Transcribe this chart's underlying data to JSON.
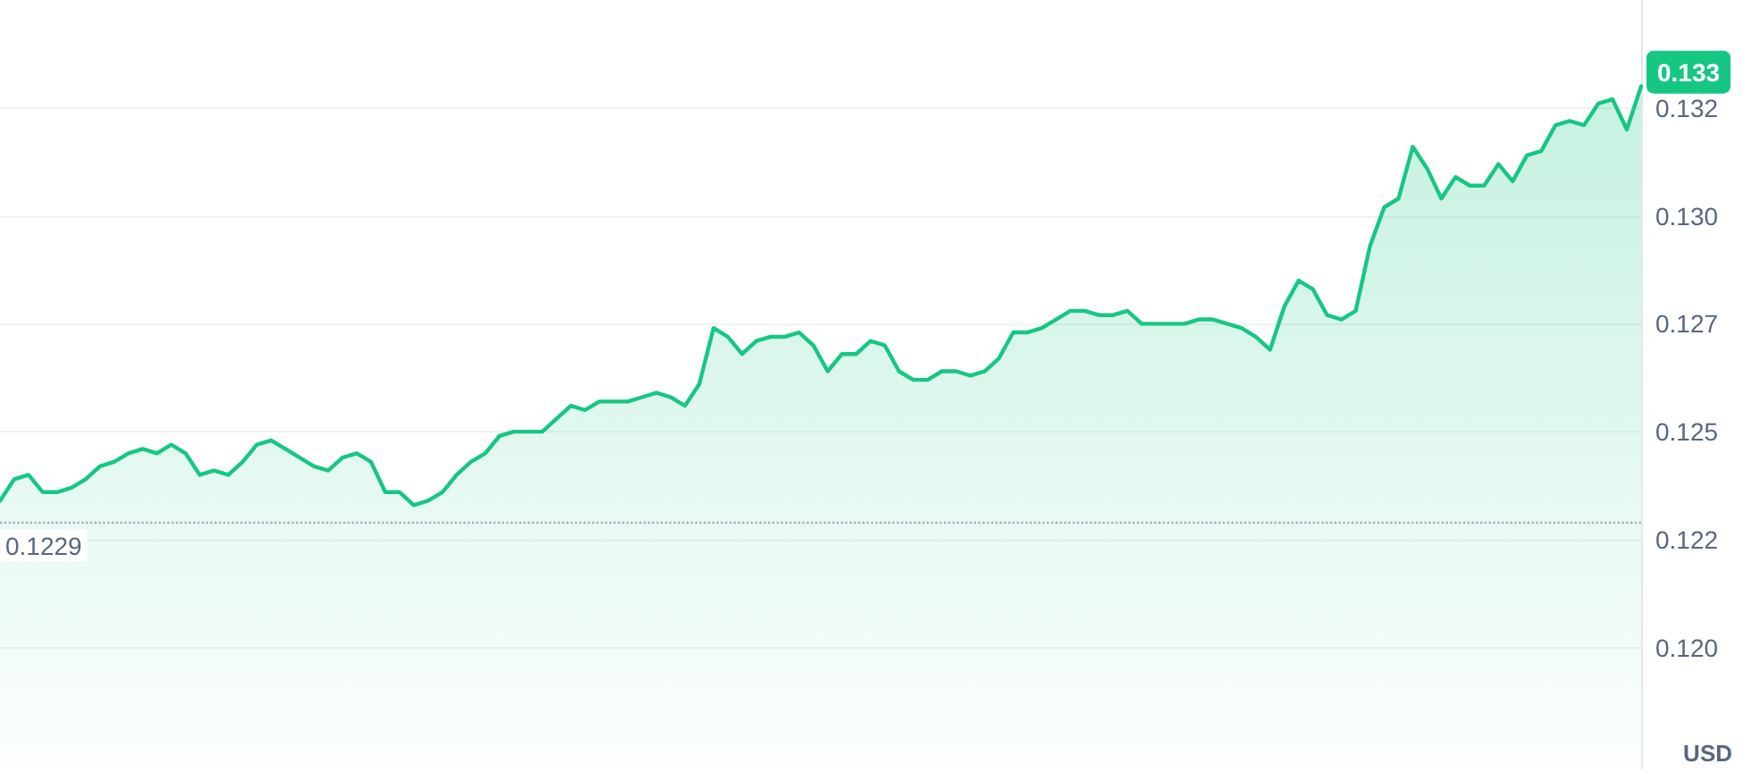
{
  "chart_data": {
    "type": "area",
    "ylabel": "USD",
    "categories": [
      null,
      null,
      null,
      null,
      null,
      null,
      null,
      null,
      null,
      null,
      null,
      null,
      null,
      null,
      null,
      null,
      null,
      null,
      null,
      null,
      null,
      null,
      null,
      null,
      null,
      null,
      null,
      null,
      null,
      null,
      null,
      null,
      null,
      null,
      null,
      null,
      null,
      null,
      null,
      null,
      null,
      null,
      null,
      null,
      null,
      null,
      null,
      null,
      null,
      null,
      null,
      null,
      null,
      null,
      null,
      null,
      null,
      null,
      null,
      null,
      null,
      null,
      null,
      null,
      null,
      null,
      null,
      null,
      null,
      null,
      null,
      null,
      null,
      null,
      null,
      null,
      null,
      null,
      null,
      null,
      null,
      null,
      null,
      null,
      null,
      null,
      null,
      null,
      null,
      null,
      null,
      null,
      null,
      null,
      null,
      null,
      null,
      null,
      null,
      null,
      null,
      null,
      null,
      null,
      null,
      null,
      null,
      null,
      null,
      null,
      null,
      null,
      null,
      null,
      null,
      null
    ],
    "series": [
      {
        "color": "#16c784",
        "values": [
          0.1234,
          0.1239,
          0.124,
          0.1236,
          0.1236,
          0.1237,
          0.1239,
          0.1242,
          0.1243,
          0.1245,
          0.1246,
          0.1245,
          0.1247,
          0.1245,
          0.124,
          0.1241,
          0.124,
          0.1243,
          0.1247,
          0.1248,
          0.1246,
          0.1244,
          0.1242,
          0.1241,
          0.1244,
          0.1245,
          0.1243,
          0.1236,
          0.1236,
          0.1233,
          0.1234,
          0.1236,
          0.124,
          0.1243,
          0.1245,
          0.1249,
          0.125,
          0.125,
          0.125,
          0.1253,
          0.1256,
          0.1255,
          0.1257,
          0.1257,
          0.1257,
          0.1258,
          0.1259,
          0.1258,
          0.1256,
          0.1261,
          0.1274,
          0.1272,
          0.1268,
          0.1271,
          0.1272,
          0.1272,
          0.1273,
          0.127,
          0.1264,
          0.1268,
          0.1268,
          0.1271,
          0.127,
          0.1264,
          0.1262,
          0.1262,
          0.1264,
          0.1264,
          0.1263,
          0.1264,
          0.1267,
          0.1273,
          0.1273,
          0.1274,
          0.1276,
          0.1278,
          0.1278,
          0.1277,
          0.1277,
          0.1278,
          0.1275,
          0.1275,
          0.1275,
          0.1275,
          0.1276,
          0.1276,
          0.1275,
          0.1274,
          0.1272,
          0.1269,
          0.1279,
          0.1285,
          0.1283,
          0.1277,
          0.1276,
          0.1278,
          0.1293,
          0.1302,
          0.1304,
          0.1316,
          0.1311,
          0.1304,
          0.1309,
          0.1307,
          0.1307,
          0.1312,
          0.1308,
          0.1314,
          0.1315,
          0.1321,
          0.1322,
          0.1321,
          0.1326,
          0.1327,
          0.132,
          0.133
        ]
      }
    ],
    "ylim": [
      0.1172,
      0.135
    ],
    "yticks": [
      {
        "value": 0.12,
        "label": "0.120"
      },
      {
        "value": 0.1225,
        "label": "0.122"
      },
      {
        "value": 0.125,
        "label": "0.125"
      },
      {
        "value": 0.1275,
        "label": "0.127"
      },
      {
        "value": 0.13,
        "label": "0.130"
      },
      {
        "value": 0.1325,
        "label": "0.132"
      }
    ],
    "grid": "y",
    "line_style": "solid",
    "ref_lines": [
      {
        "axis": "y",
        "value": 0.1229,
        "label": "0.1229",
        "color": "#a6b0c3",
        "line_style": "dotted"
      }
    ],
    "annotations": [
      "0.133"
    ]
  }
}
